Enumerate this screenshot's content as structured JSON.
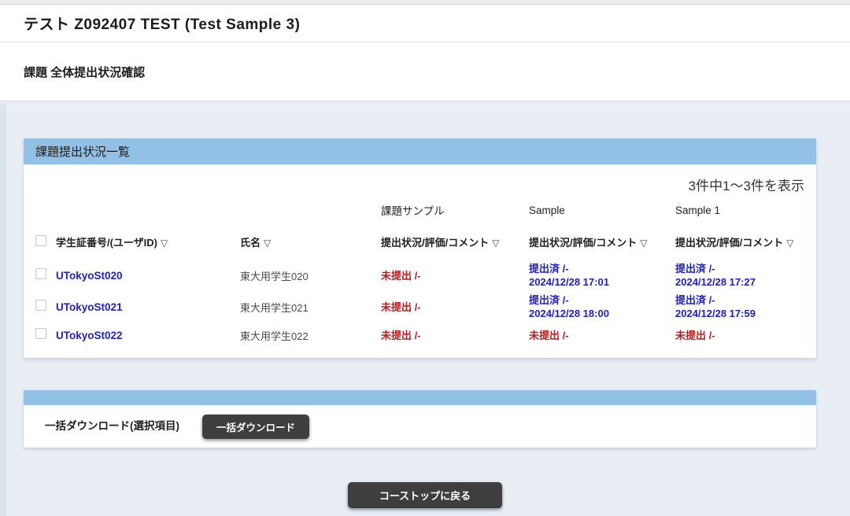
{
  "page": {
    "course_title": "テスト Z092407 TEST (Test Sample 3)",
    "page_title": "課題 全体提出状況確認"
  },
  "panel": {
    "title": "課題提出状況一覧",
    "result_count": "3件中1〜3件を表示"
  },
  "table": {
    "sort_icon": "▽",
    "assignments": {
      "a1": "課題サンプル",
      "a2": "Sample",
      "a3": "Sample 1"
    },
    "columns": {
      "student_id": "学生証番号/(ユーザID)",
      "name": "氏名",
      "status": "提出状況/評価/コメント"
    },
    "rows": [
      {
        "student_id": "UTokyoSt020",
        "name": "東大用学生020",
        "statuses": [
          {
            "status": "未提出 /-",
            "state": "not_submitted"
          },
          {
            "status": "提出済 /-",
            "date": "2024/12/28 17:01",
            "state": "submitted"
          },
          {
            "status": "提出済 /-",
            "date": "2024/12/28 17:27",
            "state": "submitted"
          }
        ]
      },
      {
        "student_id": "UTokyoSt021",
        "name": "東大用学生021",
        "statuses": [
          {
            "status": "未提出 /-",
            "state": "not_submitted"
          },
          {
            "status": "提出済 /-",
            "date": "2024/12/28 18:00",
            "state": "submitted"
          },
          {
            "status": "提出済 /-",
            "date": "2024/12/28 17:59",
            "state": "submitted"
          }
        ]
      },
      {
        "student_id": "UTokyoSt022",
        "name": "東大用学生022",
        "statuses": [
          {
            "status": "未提出 /-",
            "state": "not_submitted"
          },
          {
            "status": "未提出 /-",
            "state": "not_submitted"
          },
          {
            "status": "未提出 /-",
            "state": "not_submitted"
          }
        ]
      }
    ]
  },
  "download": {
    "label": "一括ダウンロード(選択項目)",
    "button_label": "一括ダウンロード"
  },
  "footer": {
    "back_button_label": "コーストップに戻る"
  },
  "colors": {
    "panel_header_blue": "#93c1e6",
    "link_blue": "#2222c4",
    "submitted_blue": "#2121c3",
    "not_submitted_red": "#b42020",
    "dark_button": "#3e3e3e",
    "page_background": "#e9eef5"
  }
}
